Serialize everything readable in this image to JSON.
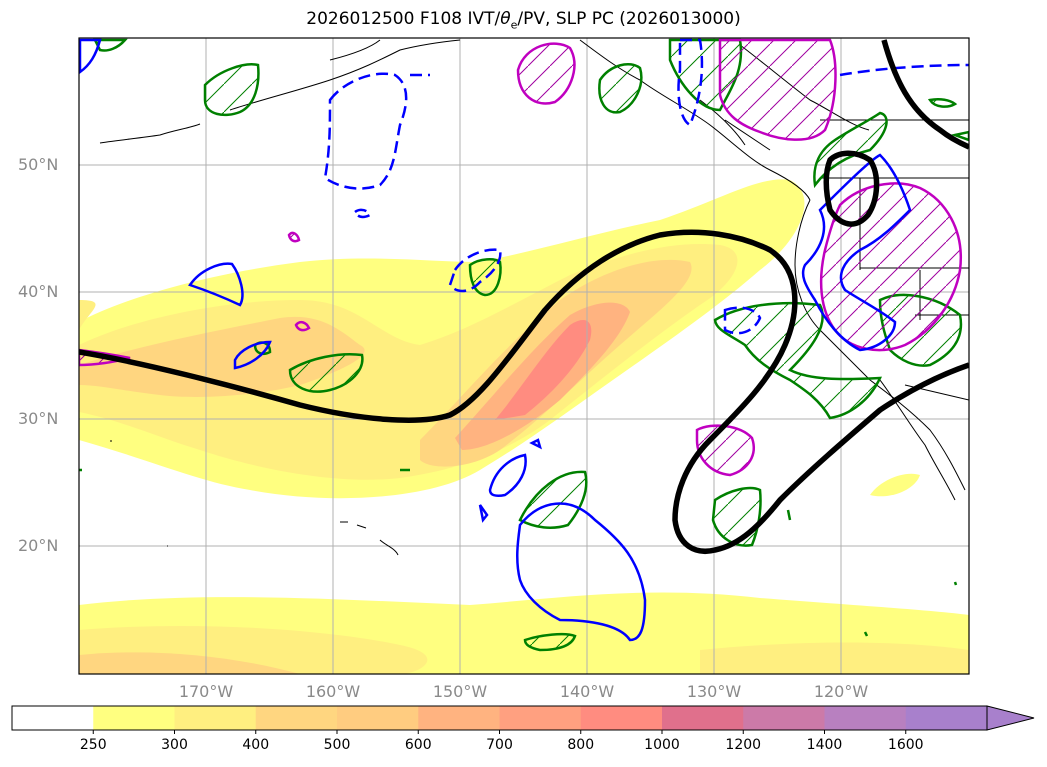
{
  "title": "2026012500 F108 IVT/θe/PV, SLP PC (2026013000)",
  "title_main": "2026012500 F108 IVT/",
  "title_theta": "θ",
  "title_sub": "e",
  "title_rest": "/PV, SLP PC (2026013000)",
  "lat_labels": [
    "50°N",
    "40°N",
    "30°N",
    "20°N"
  ],
  "lon_labels": [
    "170°W",
    "160°W",
    "150°W",
    "140°W",
    "130°W",
    "120°W"
  ],
  "colorbar": {
    "ticks": [
      "250",
      "300",
      "400",
      "500",
      "600",
      "700",
      "800",
      "1000",
      "1200",
      "1400",
      "1600"
    ],
    "colors": [
      "#ffffff",
      "#ffff80",
      "#ffef80",
      "#ffd680",
      "#ffcc80",
      "#ffb380",
      "#ffa080",
      "#ff8c80",
      "#e0708c",
      "#cc7aa8",
      "#b880c0",
      "#a880cc"
    ],
    "extend": "max"
  },
  "colors": {
    "slp_contour": "#000000",
    "theta_e_contour": "#0000ff",
    "pv_contour": "#008000",
    "pv_high_contour": "#c000c0",
    "gridline": "#b0b0b0",
    "coastline": "#000000"
  },
  "map_extent": {
    "lon": [
      -180,
      -110
    ],
    "lat": [
      10,
      60
    ]
  }
}
